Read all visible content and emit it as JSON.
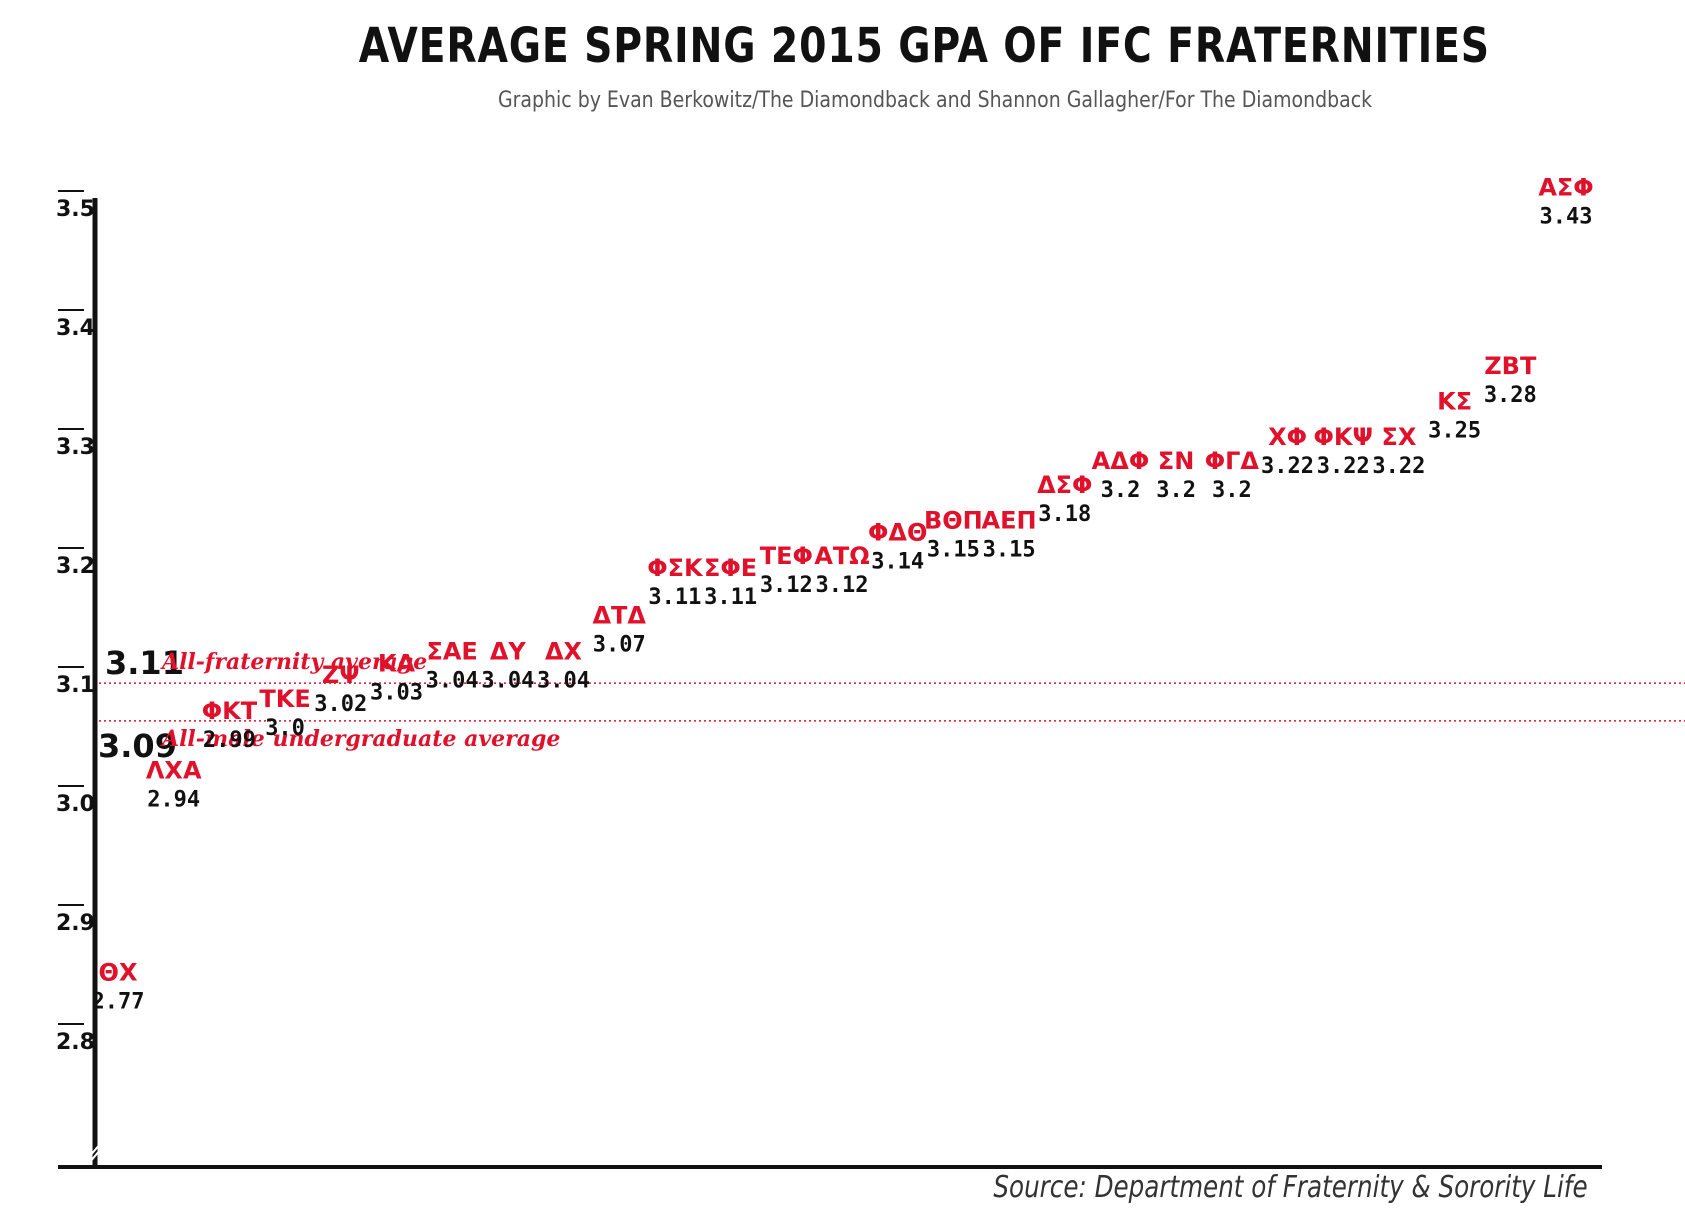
{
  "title": "AVERAGE SPRING 2015 GPA OF IFC FRATERNITIES",
  "subtitle": "Graphic by Evan Berkowitz/The Diamondback and Shannon Gallagher/For The Diamondback",
  "source": "Source: Department of Fraternity & Sorority Life",
  "colors": {
    "accent": "#e0112b",
    "text": "#111111",
    "axis": "#111111"
  },
  "chart_data": {
    "type": "scatter",
    "title": "AVERAGE SPRING 2015 GPA OF IFC FRATERNITIES",
    "xlabel": "",
    "ylabel": "",
    "ylim": [
      2.73,
      3.52
    ],
    "yticks": [
      "3.5",
      "3.4",
      "3.3",
      "3.2",
      "3.1",
      "3.0",
      "2.9",
      "2.8"
    ],
    "grid": false,
    "points": [
      {
        "name": "ΘΧ",
        "label": "2.77",
        "value": 2.77
      },
      {
        "name": "ΛΧΑ",
        "label": "2.94",
        "value": 2.94
      },
      {
        "name": "ΦΚΤ",
        "label": "2.99",
        "value": 2.99
      },
      {
        "name": "ΤΚΕ",
        "label": "3.0",
        "value": 3.0
      },
      {
        "name": "ΖΨ",
        "label": "3.02",
        "value": 3.02
      },
      {
        "name": "ΚΑ",
        "label": "3.03",
        "value": 3.03
      },
      {
        "name": "ΣΑΕ",
        "label": "3.04",
        "value": 3.04
      },
      {
        "name": "ΔΥ",
        "label": "3.04",
        "value": 3.04
      },
      {
        "name": "ΔΧ",
        "label": "3.04",
        "value": 3.04
      },
      {
        "name": "ΔΤΔ",
        "label": "3.07",
        "value": 3.07
      },
      {
        "name": "ΦΣΚ",
        "label": "3.11",
        "value": 3.11
      },
      {
        "name": "ΣΦΕ",
        "label": "3.11",
        "value": 3.11
      },
      {
        "name": "ΤΕΦ",
        "label": "3.12",
        "value": 3.12
      },
      {
        "name": "ΑΤΩ",
        "label": "3.12",
        "value": 3.12
      },
      {
        "name": "ΦΔΘ",
        "label": "3.14",
        "value": 3.14
      },
      {
        "name": "ΒΘΠ",
        "label": "3.15",
        "value": 3.15
      },
      {
        "name": "ΑΕΠ",
        "label": "3.15",
        "value": 3.15
      },
      {
        "name": "ΔΣΦ",
        "label": "3.18",
        "value": 3.18
      },
      {
        "name": "ΑΔΦ",
        "label": "3.2",
        "value": 3.2
      },
      {
        "name": "ΣΝ",
        "label": "3.2",
        "value": 3.2
      },
      {
        "name": "ΦΓΔ",
        "label": "3.2",
        "value": 3.2
      },
      {
        "name": "ΧΦ",
        "label": "3.22",
        "value": 3.22
      },
      {
        "name": "ΦΚΨ",
        "label": "3.22",
        "value": 3.22
      },
      {
        "name": "ΣΧ",
        "label": "3.22",
        "value": 3.22
      },
      {
        "name": "ΚΣ",
        "label": "3.25",
        "value": 3.25
      },
      {
        "name": "ΖΒΤ",
        "label": "3.28",
        "value": 3.28
      },
      {
        "name": "ΑΣΦ",
        "label": "3.43",
        "value": 3.43
      }
    ],
    "reference_lines": [
      {
        "value": 3.11,
        "number": "3.11",
        "label": "All-fraternity average",
        "style": "dotted"
      },
      {
        "value": 3.09,
        "number": "3.09",
        "label": "All-male undergraduate average",
        "style": "dotted"
      }
    ]
  }
}
